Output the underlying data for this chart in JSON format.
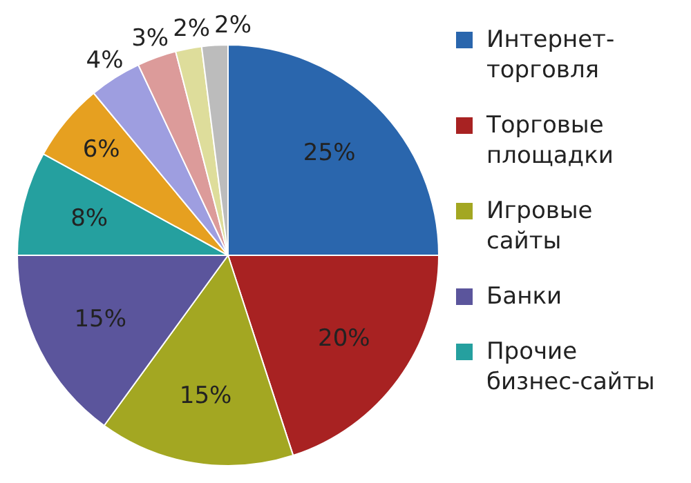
{
  "chart_data": {
    "type": "pie",
    "categories": [
      "Интернет-торговля",
      "Торговые площадки",
      "Игровые сайты",
      "Банки",
      "Прочие бизнес-сайты",
      null,
      null,
      null,
      null,
      null
    ],
    "values": [
      25,
      20,
      15,
      15,
      8,
      6,
      4,
      3,
      2,
      2
    ],
    "value_labels": [
      "25%",
      "20%",
      "15%",
      "15%",
      "8%",
      "6%",
      "4%",
      "3%",
      "2%",
      "2%"
    ],
    "colors": [
      "#2a66ad",
      "#a82222",
      "#a3a722",
      "#5b559c",
      "#25a09f",
      "#e6a020",
      "#9e9ee0",
      "#dc9b9a",
      "#dedd9b",
      "#bcbcbc"
    ],
    "legend": "right"
  }
}
